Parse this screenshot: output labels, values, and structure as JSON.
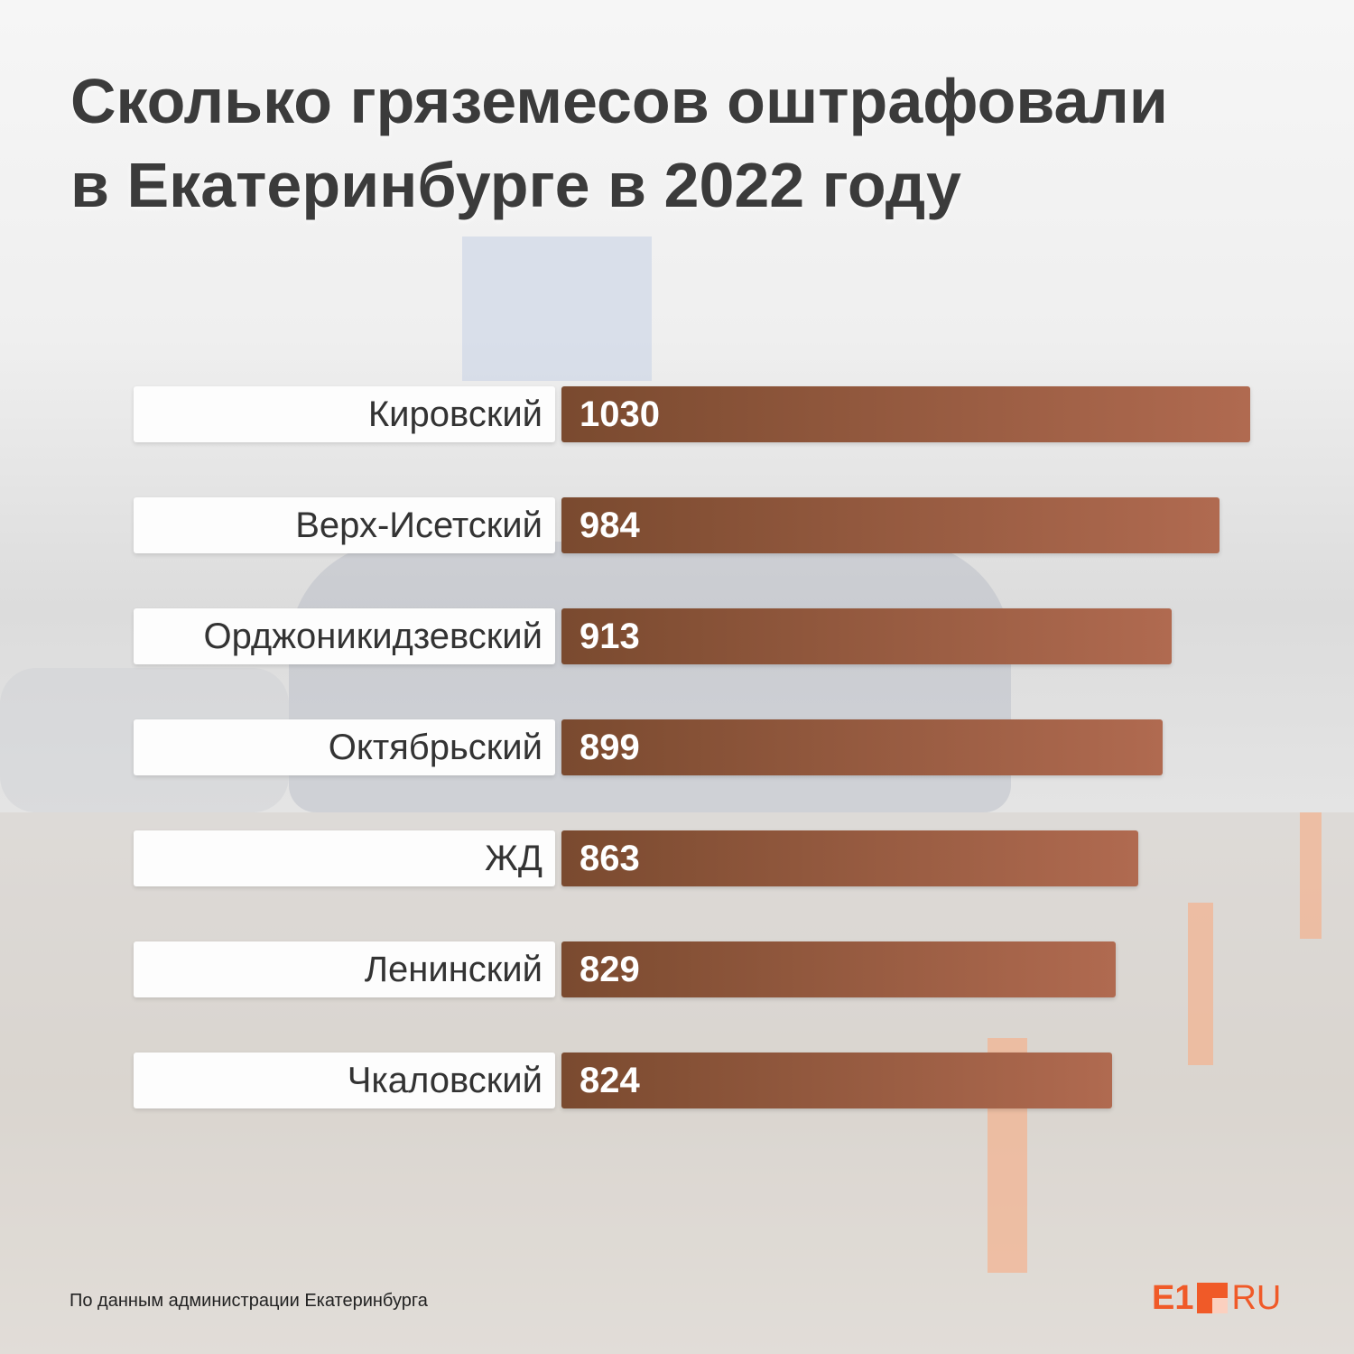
{
  "chart_data": {
    "type": "bar",
    "title": [
      "Сколько гряземесов оштрафовали",
      "в Екатеринбурге в 2022 году"
    ],
    "categories": [
      "Кировский",
      "Верх-Исетский",
      "Орджоникидзевский",
      "Октябрьский",
      "ЖД",
      "Ленинский",
      "Чкаловский"
    ],
    "values": [
      1030,
      984,
      913,
      899,
      863,
      829,
      824
    ],
    "color": [
      "#7a4a2f",
      "#b06a50"
    ],
    "source": "По данным администрации Екатеринбурга",
    "logo": [
      "E1",
      "RU"
    ]
  }
}
